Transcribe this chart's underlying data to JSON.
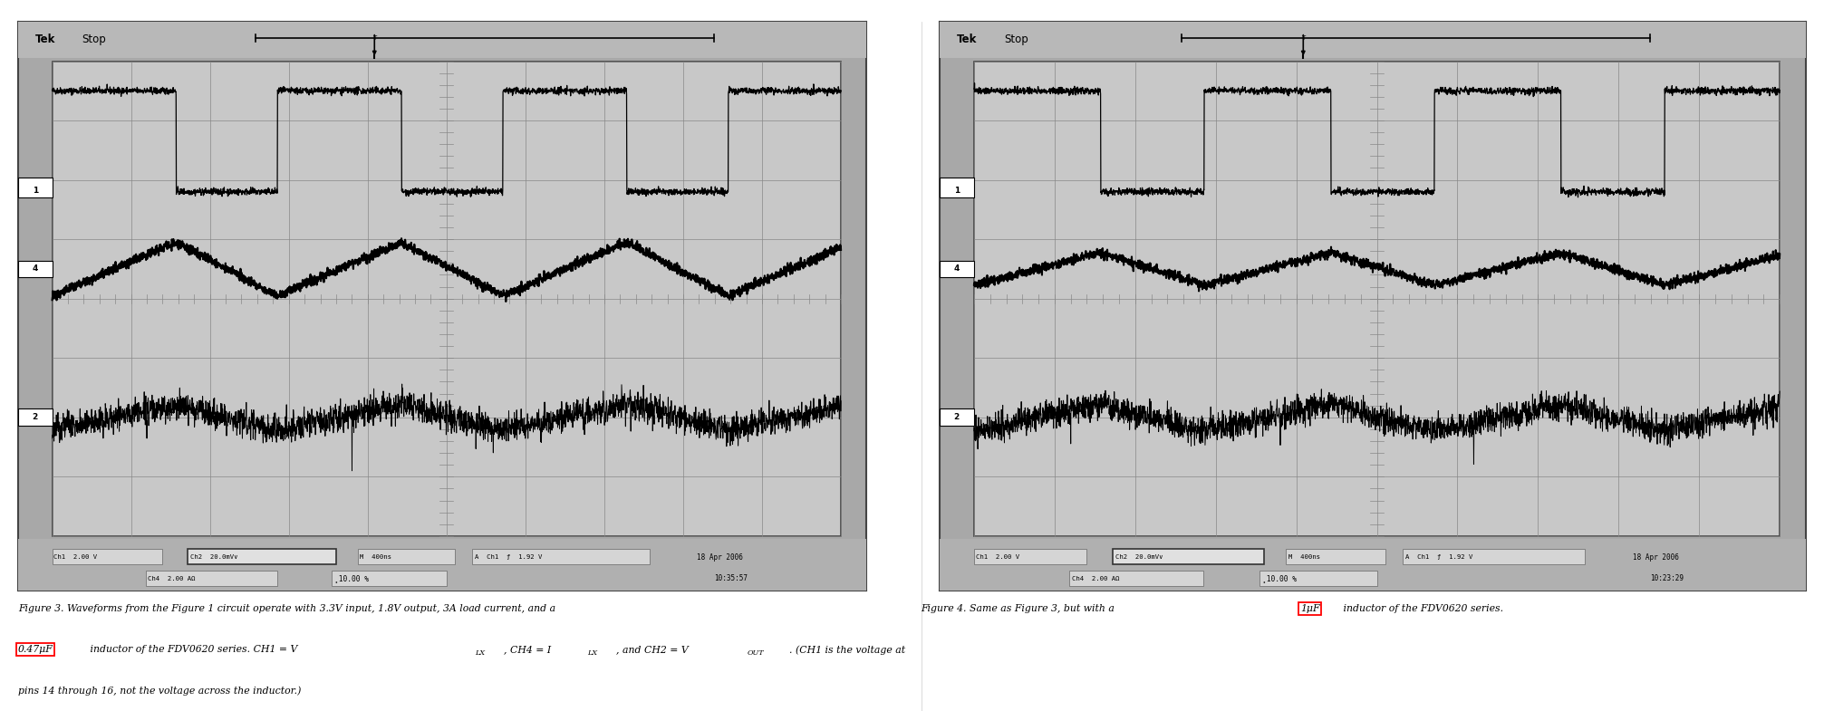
{
  "fig_width": 20.13,
  "fig_height": 7.85,
  "dpi": 100,
  "bg_color": "#ffffff",
  "scope_outer_bg": "#a8a8a8",
  "scope_screen_bg": "#c8c8c8",
  "scope_header_bg": "#b0b0b0",
  "scope_border_color": "#555555",
  "grid_color": "#888888",
  "scope1_time": "10:35:57",
  "scope2_time": "10:23:29",
  "date": "18 Apr 2006",
  "caption_fig3_l1": "Figure 3. Waveforms from the Figure 1 circuit operate with 3.3V input, 1.8V output, 3A load current, and a",
  "caption_fig3_l2a": "0.47μF",
  "caption_fig3_l2b": " inductor of the FDV0620 series. CH1 = V",
  "caption_fig3_l2_vlx": "LX",
  "caption_fig3_l2c": ", CH4 = I",
  "caption_fig3_l2_ilx": "LX",
  "caption_fig3_l2d": ", and CH2 = V",
  "caption_fig3_l2_vout": "OUT",
  "caption_fig3_l2e": ". (CH1 is the voltage at",
  "caption_fig3_l3": "pins 14 through 16, not the voltage across the inductor.)",
  "caption_fig4_a": "Figure 4. Same as Figure 3, but with a ",
  "caption_fig4_box": "1μF",
  "caption_fig4_b": " inductor of the FDV0620 series.",
  "bottom_row1": "Ch1  2.00 V",
  "bottom_ch2": "Ch2  20.0mV∨",
  "bottom_m": "M 400ns",
  "bottom_a": "A  Ch1  ƒ  1.92 V",
  "bottom_ch4": "Ch4  2.00 AΩ",
  "bottom_t": "̥10.00 %"
}
